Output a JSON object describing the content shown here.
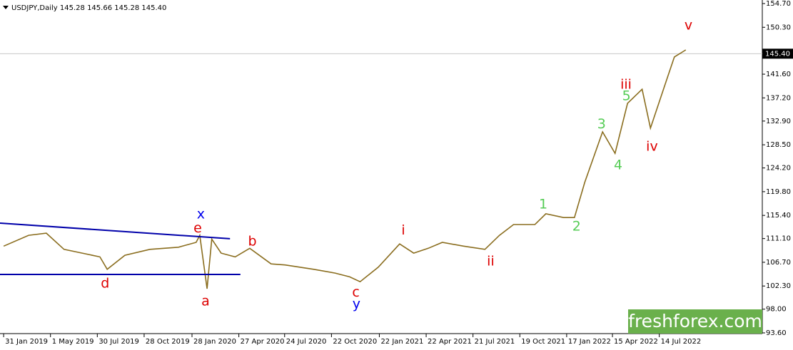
{
  "chart_data": {
    "type": "line",
    "title": "USDJPY,Daily  145.28 145.66 145.28 145.40",
    "watermark": "freshforex.com",
    "color": "#8a6d1e",
    "x": [
      "31 Jan 2019",
      "20 Mar 2019",
      "23 Apr 2019",
      "27 May 2019",
      "1 Jul 2019",
      "4 Aug 2019",
      "18 Aug 2019",
      "21 Sep 2019",
      "8 Nov 2019",
      "2 Jan 2020",
      "5 Feb 2020",
      "12 Feb 2020",
      "26 Feb 2020",
      "6 Mar 2020",
      "24 Mar 2020",
      "20 Apr 2020",
      "18 May 2020",
      "28 Jun 2020",
      "25 Jul 2020",
      "18 Sep 2020",
      "29 Oct 2020",
      "26 Nov 2020",
      "16 Dec 2020",
      "20 Jan 2021",
      "2 Mar 2021",
      "29 Mar 2021",
      "26 Apr 2021",
      "23 May 2021",
      "3 Jul 2021",
      "13 Aug 2021",
      "10 Sep 2021",
      "7 Oct 2021",
      "17 Nov 2021",
      "8 Dec 2021",
      "11 Jan 2022",
      "1 Feb 2022",
      "21 Feb 2022",
      "27 Mar 2022",
      "20 Apr 2022",
      "14 May 2022",
      "11 Jun 2022",
      "27 Jun 2022",
      "29 Jul 2022",
      "12 Aug 2022",
      "3 Sep 2022"
    ],
    "values": [
      109.7,
      111.7,
      112.1,
      109.1,
      108.4,
      107.7,
      105.4,
      108.0,
      109.1,
      109.5,
      110.4,
      111.7,
      101.8,
      111.0,
      108.4,
      107.7,
      109.3,
      106.4,
      106.2,
      105.4,
      104.7,
      104.0,
      103.1,
      105.8,
      110.1,
      108.4,
      109.3,
      110.4,
      109.7,
      109.1,
      111.7,
      113.7,
      113.7,
      115.7,
      115.0,
      115.0,
      121.6,
      130.9,
      126.9,
      136.2,
      138.8,
      131.6,
      140.8,
      144.8,
      146.1
    ],
    "xlim": [
      "24 Jan 2019",
      "28 Jan 2023"
    ],
    "xticks": [
      "31 Jan 2019",
      "1 May 2019",
      "30 Jul 2019",
      "28 Oct 2019",
      "28 Jan 2020",
      "27 Apr 2020",
      "24 Jul 2020",
      "22 Oct 2020",
      "22 Jan 2021",
      "22 Apr 2021",
      "21 Jul 2021",
      "19 Oct 2021",
      "17 Jan 2022",
      "15 Apr 2022",
      "14 Jul 2022"
    ],
    "ylim": [
      93.6,
      154.7
    ],
    "yticks": [
      {
        "value": 154.7,
        "label": "154.70"
      },
      {
        "value": 150.3,
        "label": "150.30"
      },
      {
        "value": 141.6,
        "label": "141.60"
      },
      {
        "value": 137.2,
        "label": "137.20"
      },
      {
        "value": 132.9,
        "label": "132.90"
      },
      {
        "value": 128.5,
        "label": "128.50"
      },
      {
        "value": 124.2,
        "label": "124.20"
      },
      {
        "value": 119.8,
        "label": "119.80"
      },
      {
        "value": 115.4,
        "label": "115.40"
      },
      {
        "value": 111.1,
        "label": "111.10"
      },
      {
        "value": 106.7,
        "label": "106.70"
      },
      {
        "value": 102.3,
        "label": "102.30"
      },
      {
        "value": 98,
        "label": "98.00"
      },
      {
        "value": 93.6,
        "label": "93.60"
      }
    ],
    "price_line": {
      "value": 145.4,
      "label": "145.40"
    },
    "trendlines": [
      {
        "color": "#0000aa",
        "x": [
          "24 Jan 2019",
          "10 Apr 2020"
        ],
        "y": [
          113.97,
          111.07
        ]
      },
      {
        "color": "#0000aa",
        "x": [
          "24 Jan 2019",
          "30 Apr 2020"
        ],
        "y": [
          104.45,
          104.45
        ]
      }
    ],
    "annotations": [
      {
        "text": "x",
        "color": "#0000ee",
        "x": "14 Feb 2020",
        "y": 115.55
      },
      {
        "text": "e",
        "color": "#dd0000",
        "x": "8 Feb 2020",
        "y": 113.0
      },
      {
        "text": "a",
        "color": "#dd0000",
        "x": "23 Feb 2020",
        "y": 99.4
      },
      {
        "text": "d",
        "color": "#dd0000",
        "x": "14 Aug 2019",
        "y": 102.7
      },
      {
        "text": "b",
        "color": "#dd0000",
        "x": "23 May 2020",
        "y": 110.5
      },
      {
        "text": "c",
        "color": "#dd0000",
        "x": "8 Dec 2020",
        "y": 101.1
      },
      {
        "text": "y",
        "color": "#0000ee",
        "x": "9 Dec 2020",
        "y": 98.9
      },
      {
        "text": "i",
        "color": "#dd0000",
        "x": "9 Mar 2021",
        "y": 112.6
      },
      {
        "text": "ii",
        "color": "#dd0000",
        "x": "24 Aug 2021",
        "y": 106.8
      },
      {
        "text": "1",
        "color": "#55cc55",
        "x": "3 Dec 2021",
        "y": 117.4
      },
      {
        "text": "2",
        "color": "#55cc55",
        "x": "5 Feb 2022",
        "y": 113.3
      },
      {
        "text": "3",
        "color": "#55cc55",
        "x": "25 Mar 2022",
        "y": 132.3
      },
      {
        "text": "4",
        "color": "#55cc55",
        "x": "26 Apr 2022",
        "y": 124.7
      },
      {
        "text": "5",
        "color": "#55cc55",
        "x": "12 May 2022",
        "y": 137.5
      },
      {
        "text": "iii",
        "color": "#dd0000",
        "x": "11 May 2022",
        "y": 139.6
      },
      {
        "text": "iv",
        "color": "#dd0000",
        "x": "30 Jun 2022",
        "y": 128.1
      },
      {
        "text": "v",
        "color": "#dd0000",
        "x": "8 Sep 2022",
        "y": 150.6
      }
    ]
  }
}
